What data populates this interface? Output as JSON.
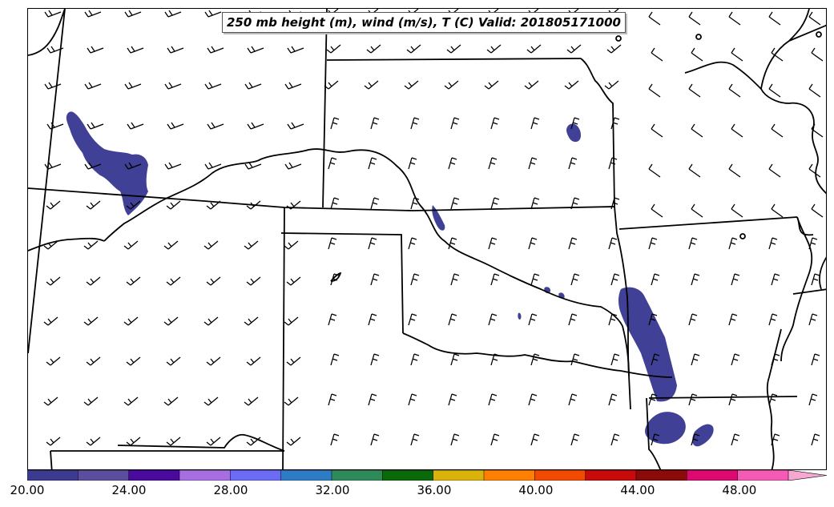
{
  "title": "250 mb height (m), wind (m/s), T (C) Valid: 201805171000",
  "colorbar": {
    "colors": [
      "#3b3b8f",
      "#5c4e9e",
      "#4a0a9e",
      "#a66ee0",
      "#6b6bf5",
      "#2e7cc4",
      "#2e8a58",
      "#0a6a0a",
      "#d9b20a",
      "#ff7f00",
      "#f24a00",
      "#c80a0a",
      "#8c0a0a",
      "#dc0a70",
      "#f55ab4"
    ],
    "extend_color": "#f7a8d2",
    "min": 20,
    "max": 51.5,
    "step": 2.0,
    "tick_labels": [
      "20.00",
      "24.00",
      "28.00",
      "32.00",
      "36.00",
      "40.00",
      "44.00",
      "48.00"
    ]
  },
  "fill_color": "#404096",
  "boundary_color": "#000000",
  "barb_color": "#000000"
}
